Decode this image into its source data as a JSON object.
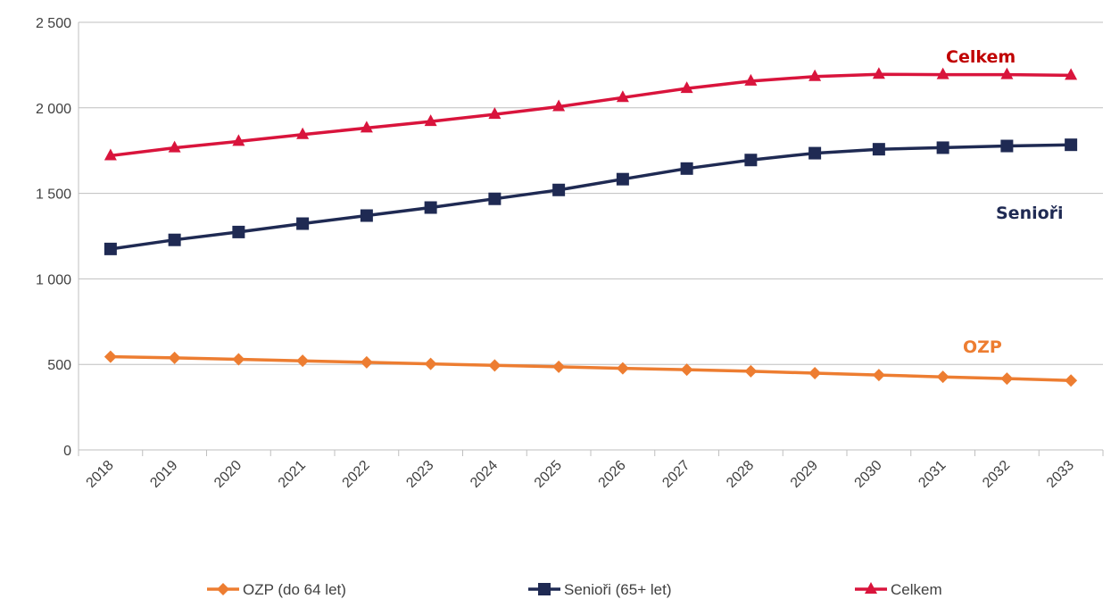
{
  "chart_data": {
    "type": "line",
    "title": "",
    "xlabel": "",
    "ylabel": "",
    "categories": [
      "2018",
      "2019",
      "2020",
      "2021",
      "2022",
      "2023",
      "2024",
      "2025",
      "2026",
      "2027",
      "2028",
      "2029",
      "2030",
      "2031",
      "2032",
      "2033"
    ],
    "ylim": [
      0,
      2500
    ],
    "yticks": [
      0,
      500,
      1000,
      1500,
      2000,
      2500
    ],
    "ytick_labels": [
      "0",
      "500",
      "1 000",
      "1 500",
      "2 000",
      "2 500"
    ],
    "grid": "horizontal",
    "legend_position": "bottom",
    "series": [
      {
        "name": "OZP (do 64 let)",
        "label": "OZP",
        "marker": "diamond",
        "color": "#ED7D31",
        "values": [
          545,
          538,
          530,
          521,
          512,
          503,
          494,
          486,
          477,
          469,
          460,
          449,
          438,
          427,
          417,
          406
        ]
      },
      {
        "name": "Senioři (65+ let)",
        "label": "Senioři",
        "marker": "square",
        "color": "#1F2A53",
        "values": [
          1175,
          1228,
          1274,
          1323,
          1370,
          1417,
          1468,
          1520,
          1583,
          1645,
          1695,
          1735,
          1758,
          1767,
          1777,
          1784
        ]
      },
      {
        "name": "Celkem",
        "label": "Celkem",
        "marker": "triangle",
        "color": "#D9143C",
        "label_color": "#C00000",
        "values": [
          1720,
          1766,
          1804,
          1844,
          1882,
          1920,
          1962,
          2007,
          2060,
          2113,
          2156,
          2183,
          2196,
          2194,
          2194,
          2190
        ]
      }
    ]
  }
}
